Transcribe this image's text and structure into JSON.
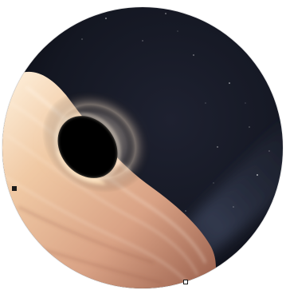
{
  "scene": {
    "subject": "black-hole",
    "background_color": "#0d0f17",
    "disk_color_hot": "#fff1dc",
    "disk_color_mid": "#e8b890",
    "disk_color_outer": "#a86a55",
    "shadow_color": "#000000",
    "galaxy_band_color": "#3a4257"
  },
  "controls": {
    "left_handle_icon": "square-handle-icon",
    "bottom_handle_icon": "square-handle-icon"
  }
}
